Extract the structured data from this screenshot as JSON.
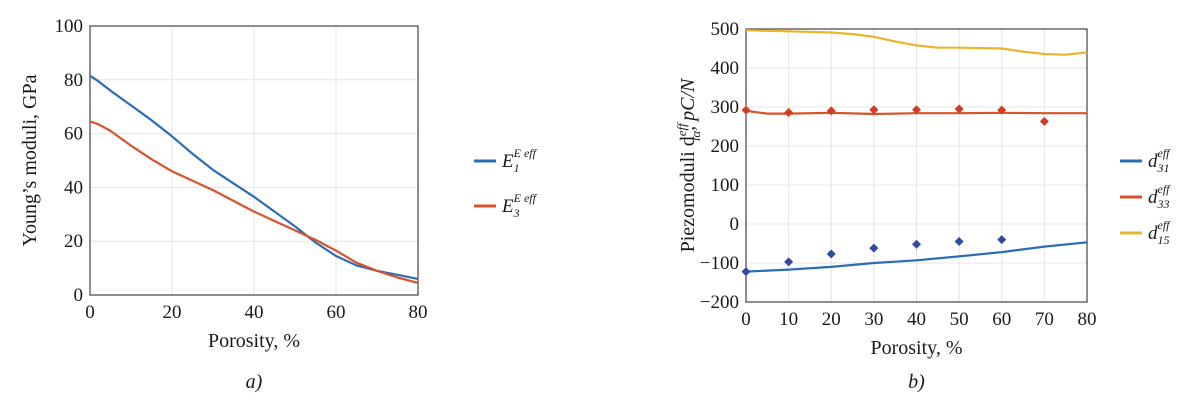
{
  "colors": {
    "blue": "#2a6db5",
    "red": "#d9522b",
    "yellow": "#e8b52c",
    "marker_blue": "#2f4b9a",
    "marker_red": "#d43b24"
  },
  "chart_data": [
    {
      "type": "line",
      "caption": "a)",
      "xlabel": "Porosity, %",
      "ylabel": "Young’s moduli, GPa",
      "xlim": [
        0,
        80
      ],
      "ylim": [
        0,
        100
      ],
      "xticks": [
        0,
        20,
        40,
        60,
        80
      ],
      "yticks": [
        0,
        20,
        40,
        60,
        80,
        100
      ],
      "grid": true,
      "legend_position": "right",
      "series": [
        {
          "name": "E1E eff",
          "label_main": "E",
          "label_sub": "1",
          "label_sup": "E eff",
          "color": "blue",
          "x": [
            0,
            2,
            5,
            10,
            15,
            20,
            25,
            30,
            35,
            40,
            45,
            50,
            55,
            60,
            65,
            70,
            75,
            80
          ],
          "y": [
            81.5,
            79.5,
            76,
            70.5,
            65,
            59,
            52.5,
            46.5,
            41.5,
            36.5,
            31,
            25.5,
            19.5,
            14.5,
            11,
            9,
            7.5,
            6
          ]
        },
        {
          "name": "E3E eff",
          "label_main": "E",
          "label_sub": "3",
          "label_sup": "E eff",
          "color": "red",
          "x": [
            0,
            2,
            5,
            10,
            15,
            20,
            25,
            30,
            35,
            40,
            45,
            50,
            55,
            60,
            65,
            70,
            75,
            80
          ],
          "y": [
            64.5,
            63.5,
            61,
            55.5,
            50.5,
            46,
            42.5,
            39,
            35,
            31,
            27.5,
            24,
            20.5,
            16.5,
            12,
            9,
            6.5,
            4.5
          ]
        }
      ]
    },
    {
      "type": "line",
      "caption": "b)",
      "xlabel": "Porosity, %",
      "ylabel": "Piezomoduli d",
      "ylabel_sub": "iα",
      "ylabel_sup": "eff",
      "ylabel_unit": ", pC/N",
      "xlim": [
        0,
        80
      ],
      "ylim": [
        -200,
        500
      ],
      "xticks": [
        0,
        10,
        20,
        30,
        40,
        50,
        60,
        70,
        80
      ],
      "yticks": [
        -200,
        -100,
        0,
        100,
        200,
        300,
        400,
        500
      ],
      "grid": true,
      "legend_position": "right",
      "series": [
        {
          "name": "d31 eff",
          "label_main": "d",
          "label_sub": "31",
          "label_sup": "eff",
          "color": "blue",
          "x": [
            0,
            10,
            20,
            30,
            40,
            50,
            60,
            70,
            80
          ],
          "y": [
            -122,
            -117,
            -110,
            -100,
            -93,
            -83,
            -72,
            -58,
            -47
          ]
        },
        {
          "name": "d33 eff",
          "label_main": "d",
          "label_sub": "33",
          "label_sup": "eff",
          "color": "red",
          "x": [
            0,
            5,
            10,
            20,
            30,
            40,
            50,
            60,
            70,
            80
          ],
          "y": [
            290,
            283,
            283,
            285,
            282,
            284,
            284,
            285,
            284,
            284
          ]
        },
        {
          "name": "d15 eff",
          "label_main": "d",
          "label_sub": "15",
          "label_sup": "eff",
          "color": "yellow",
          "x": [
            0,
            10,
            20,
            25,
            30,
            35,
            40,
            45,
            50,
            55,
            60,
            65,
            70,
            75,
            80
          ],
          "y": [
            497,
            494,
            491,
            487,
            480,
            468,
            458,
            452,
            452,
            451,
            450,
            442,
            436,
            434,
            440
          ]
        }
      ],
      "markers": [
        {
          "color": "marker_red",
          "x": [
            0,
            10,
            20,
            30,
            40,
            50,
            60,
            70
          ],
          "y": [
            292,
            286,
            290,
            293,
            293,
            295,
            292,
            263
          ]
        },
        {
          "color": "marker_blue",
          "x": [
            0,
            10,
            20,
            30,
            40,
            50,
            60
          ],
          "y": [
            -122,
            -97,
            -77,
            -62,
            -52,
            -45,
            -40
          ]
        }
      ]
    }
  ]
}
